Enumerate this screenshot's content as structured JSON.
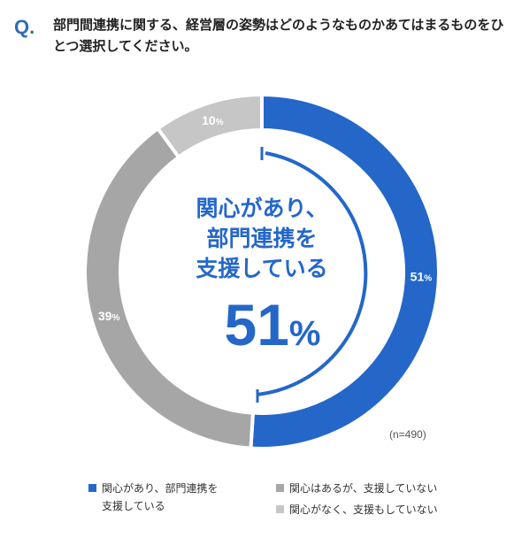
{
  "question": {
    "mark": "Q.",
    "text": "部門間連携に関する、経営層の姿勢はどのようなものかあてはまるものをひとつ選択してください。"
  },
  "callout": {
    "lines": [
      "関心があり、",
      "部門連携を",
      "支援している"
    ],
    "value": "51",
    "unit": "%"
  },
  "note": "(n=490)",
  "chart_data": {
    "type": "pie",
    "categories": [
      "関心があり、部門連携を支援している",
      "関心はあるが、支援していない",
      "関心がなく、支援もしていない"
    ],
    "values": [
      51,
      39,
      10
    ],
    "labels": [
      "51%",
      "39%",
      "10%"
    ],
    "colors": [
      "#2467c9",
      "#a6a6a6",
      "#c6c6c6"
    ],
    "legend_position": "bottom"
  },
  "legend": [
    {
      "label": "関心があり、部門連携を\n支援している",
      "color": "#2467c9"
    },
    {
      "label": "関心はあるが、支援していない",
      "color": "#a6a6a6"
    },
    {
      "label": "関心がなく、支援もしていない",
      "color": "#c6c6c6"
    }
  ]
}
